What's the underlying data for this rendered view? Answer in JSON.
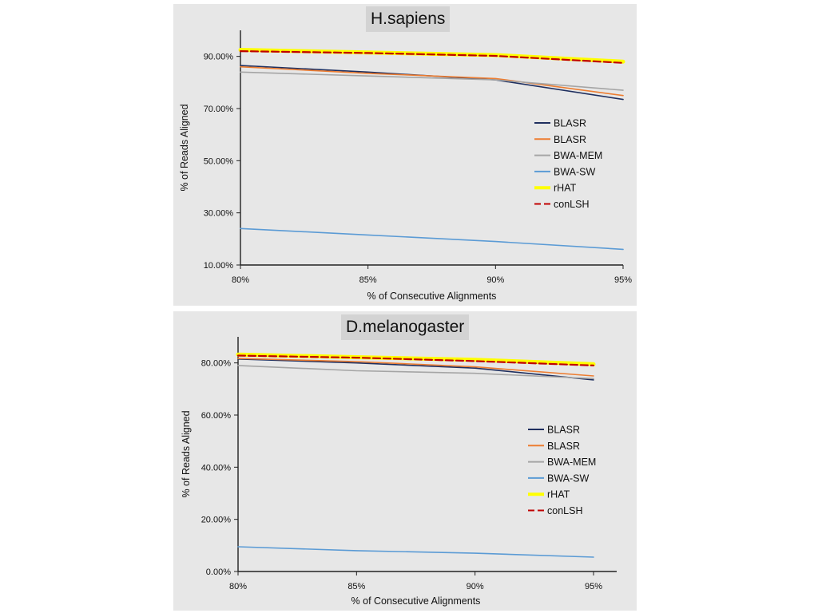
{
  "chart_data": [
    {
      "type": "line",
      "title": "H.sapiens",
      "xlabel": "% of Consecutive Alignments",
      "ylabel": "% of Reads Aligned",
      "x": [
        80,
        85,
        90,
        95
      ],
      "x_tick_labels": [
        "80%",
        "85%",
        "90%",
        "95%"
      ],
      "xlim": [
        80,
        95
      ],
      "ylim": [
        10,
        100
      ],
      "y_ticks": [
        10,
        30,
        50,
        70,
        90
      ],
      "y_tick_labels": [
        "10.00%",
        "30.00%",
        "50.00%",
        "70.00%",
        "90.00%"
      ],
      "legend_position": "right",
      "series": [
        {
          "name": "BLASR",
          "color": "#1f2f5f",
          "dash": "solid",
          "values": [
            86.5,
            84,
            81,
            73.5
          ]
        },
        {
          "name": "BLASR",
          "color": "#ed7d31",
          "dash": "solid",
          "values": [
            86,
            83.5,
            81.5,
            75
          ]
        },
        {
          "name": "BWA-MEM",
          "color": "#a5a5a5",
          "dash": "solid",
          "values": [
            84,
            82.5,
            81,
            77
          ]
        },
        {
          "name": "BWA-SW",
          "color": "#5b9bd5",
          "dash": "solid",
          "values": [
            24,
            21.5,
            19,
            16
          ]
        },
        {
          "name": "rHAT",
          "color": "#ffff00",
          "dash": "solid",
          "values": [
            92.5,
            91.5,
            90.5,
            88
          ]
        },
        {
          "name": "conLSH",
          "color": "#c00000",
          "dash": "dashed",
          "values": [
            92,
            91.3,
            90.2,
            87.5
          ]
        }
      ]
    },
    {
      "type": "line",
      "title": "D.melanogaster",
      "xlabel": "% of Consecutive Alignments",
      "ylabel": "% of Reads Aligned",
      "x": [
        80,
        85,
        90,
        95
      ],
      "x_tick_labels": [
        "80%",
        "85%",
        "90%",
        "95%"
      ],
      "xlim": [
        80,
        96
      ],
      "ylim": [
        0,
        90
      ],
      "y_ticks": [
        0,
        20,
        40,
        60,
        80
      ],
      "y_tick_labels": [
        "0.00%",
        "20.00%",
        "40.00%",
        "60.00%",
        "80.00%"
      ],
      "legend_position": "right",
      "series": [
        {
          "name": "BLASR",
          "color": "#1f2f5f",
          "dash": "solid",
          "values": [
            81.5,
            80,
            78,
            73.5
          ]
        },
        {
          "name": "BLASR",
          "color": "#ed7d31",
          "dash": "solid",
          "values": [
            81.7,
            80.5,
            78.5,
            75
          ]
        },
        {
          "name": "BWA-MEM",
          "color": "#a5a5a5",
          "dash": "solid",
          "values": [
            79,
            77,
            76,
            74
          ]
        },
        {
          "name": "BWA-SW",
          "color": "#5b9bd5",
          "dash": "solid",
          "values": [
            9.5,
            8,
            7,
            5.5
          ]
        },
        {
          "name": "rHAT",
          "color": "#ffff00",
          "dash": "solid",
          "values": [
            83.2,
            82.2,
            81.2,
            79.5
          ]
        },
        {
          "name": "conLSH",
          "color": "#c00000",
          "dash": "dashed",
          "values": [
            82.8,
            82,
            80.7,
            79
          ]
        }
      ]
    }
  ]
}
